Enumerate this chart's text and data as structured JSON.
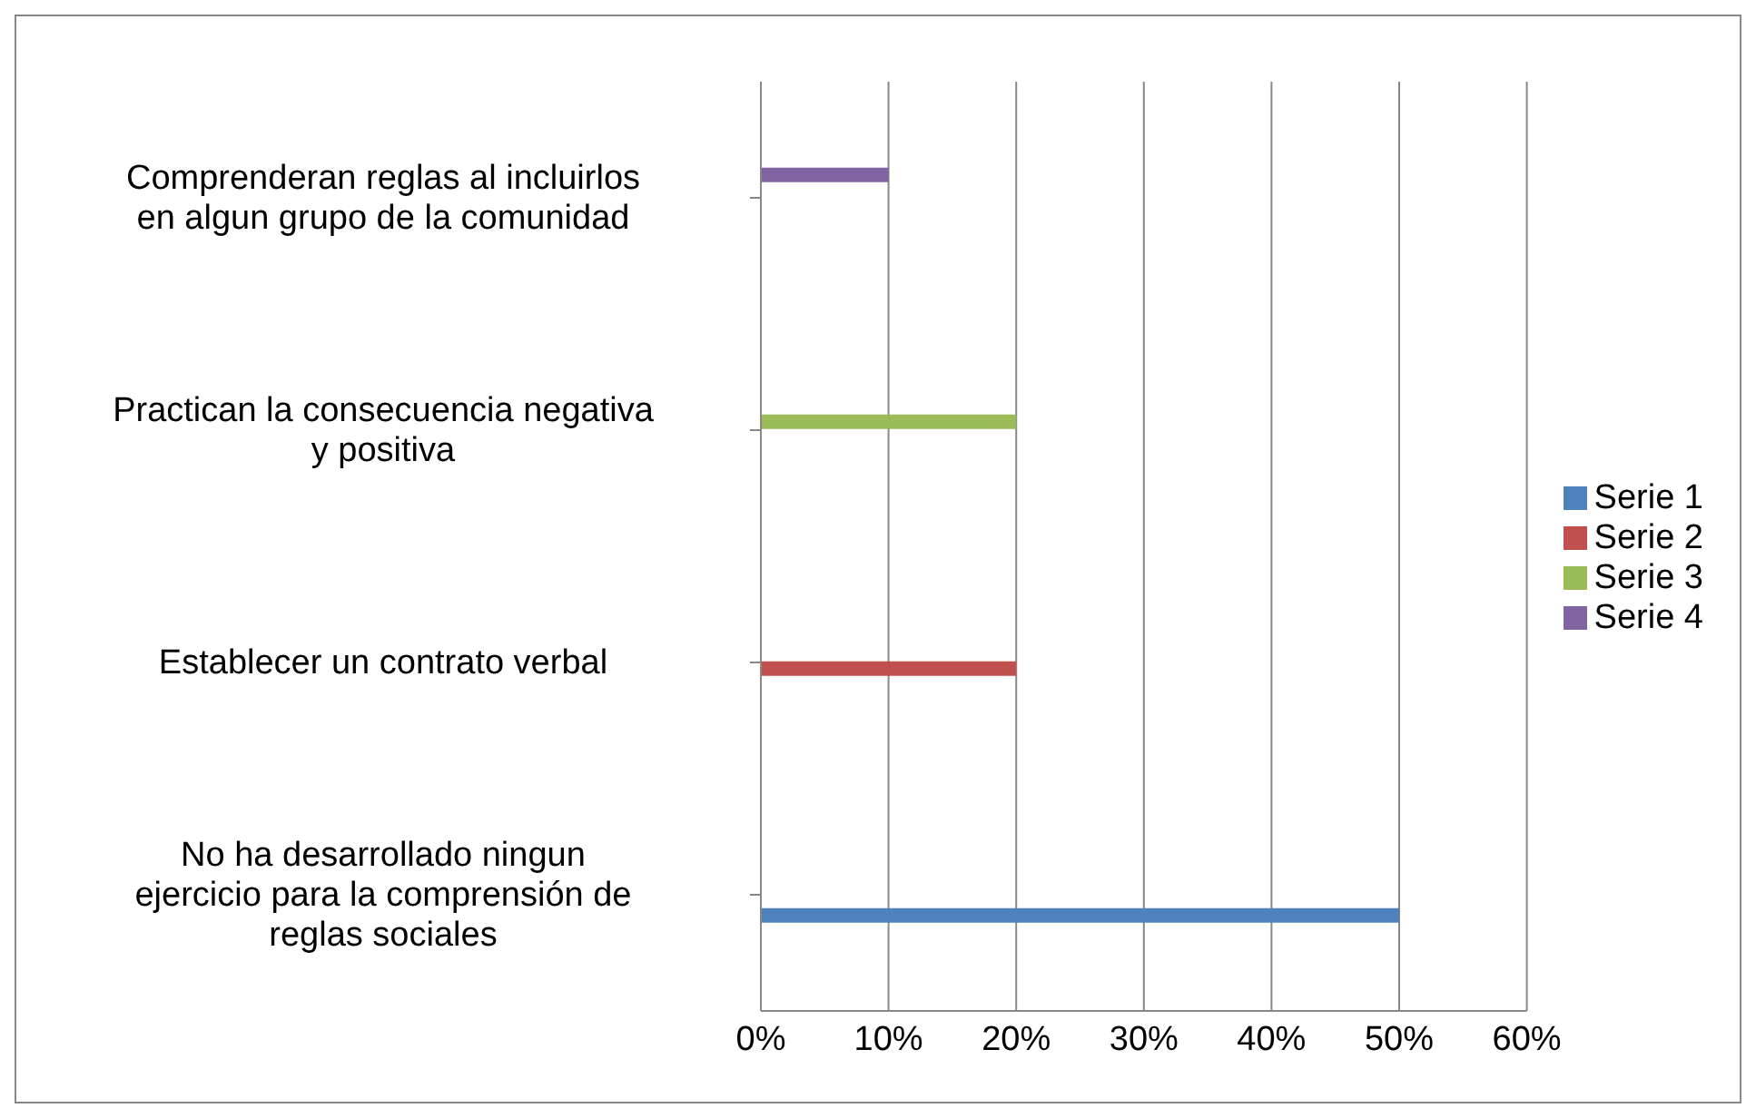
{
  "chart_data": {
    "type": "bar",
    "orientation": "horizontal",
    "categories": [
      "Comprenderan reglas al incluirlos en algun grupo de la comunidad",
      "Practican la consecuencia negativa y positiva",
      "Establecer un contrato verbal",
      "No ha desarrollado ningun ejercicio para la comprensión de reglas sociales"
    ],
    "series": [
      {
        "name": "Serie 1",
        "color": "#4f81bd",
        "values": [
          null,
          null,
          null,
          50
        ]
      },
      {
        "name": "Serie 2",
        "color": "#c0504d",
        "values": [
          null,
          null,
          20,
          null
        ]
      },
      {
        "name": "Serie 3",
        "color": "#9bbb59",
        "values": [
          null,
          20,
          null,
          null
        ]
      },
      {
        "name": "Serie 4",
        "color": "#8064a2",
        "values": [
          10,
          null,
          null,
          null
        ]
      }
    ],
    "xlim": [
      0,
      60
    ],
    "xticks": [
      {
        "value": 0,
        "label": "0%"
      },
      {
        "value": 10,
        "label": "10%"
      },
      {
        "value": 20,
        "label": "20%"
      },
      {
        "value": 30,
        "label": "30%"
      },
      {
        "value": 40,
        "label": "40%"
      },
      {
        "value": 50,
        "label": "50%"
      },
      {
        "value": 60,
        "label": "60%"
      }
    ],
    "grid": "x",
    "legend": "right"
  }
}
